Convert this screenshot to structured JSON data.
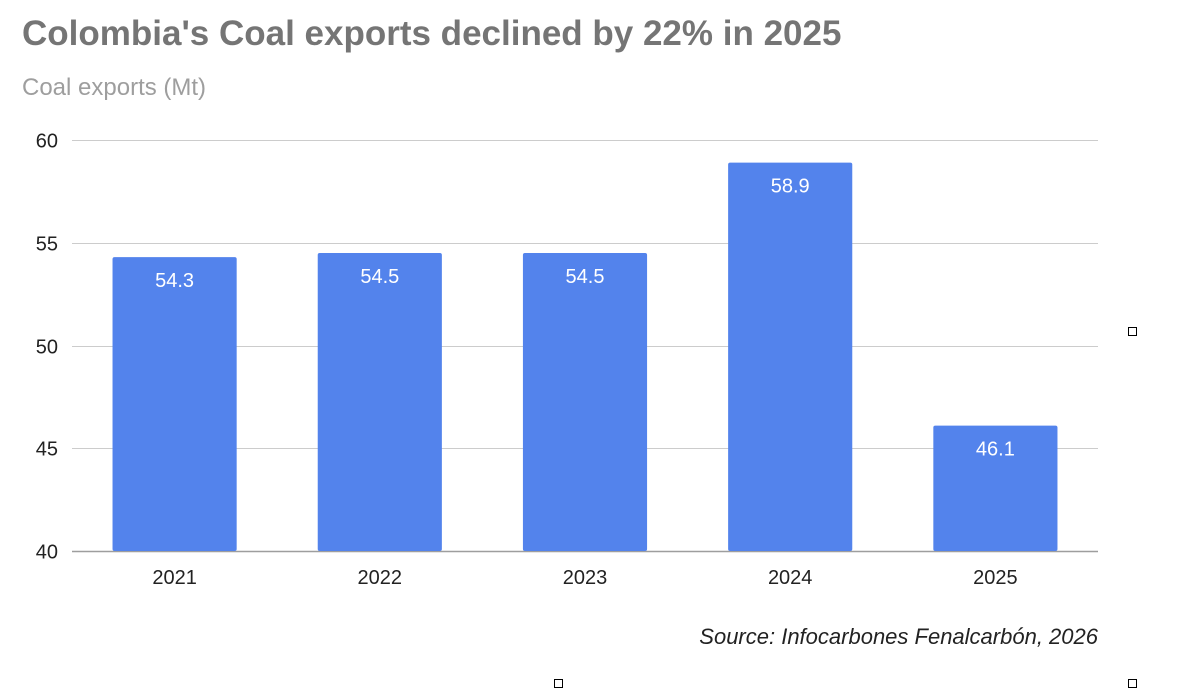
{
  "chart_data": {
    "type": "bar",
    "title": "Colombia's Coal exports declined by 22% in 2025",
    "subtitle": "Coal exports (Mt)",
    "categories": [
      "2021",
      "2022",
      "2023",
      "2024",
      "2025"
    ],
    "values": [
      54.3,
      54.5,
      54.5,
      58.9,
      46.1
    ],
    "data_labels": [
      "54.3",
      "54.5",
      "54.5",
      "58.9",
      "46.1"
    ],
    "ylim": [
      40,
      60
    ],
    "yticks": [
      40,
      45,
      50,
      55,
      60
    ],
    "grid": true,
    "legend": "none",
    "bar_color": "#5383EC",
    "source": "Source: Infocarbones Fenalcarbón, 2026"
  }
}
